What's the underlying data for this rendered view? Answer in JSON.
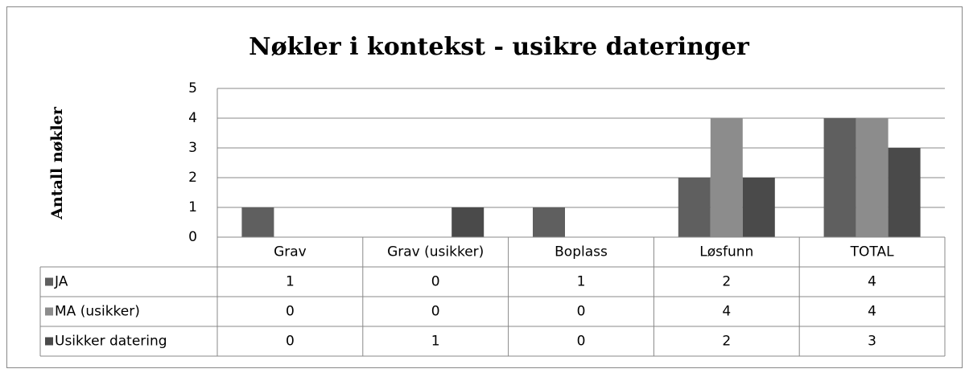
{
  "chart_data": {
    "type": "bar",
    "title": "Nøkler i kontekst - usikre dateringer",
    "y_label": "Antall nøkler",
    "categories": [
      "Grav",
      "Grav (usikker)",
      "Boplass",
      "Løsfunn",
      "TOTAL"
    ],
    "series": [
      {
        "name": "JA",
        "color": "#5f5f5f",
        "values": [
          1,
          0,
          1,
          2,
          4
        ]
      },
      {
        "name": "MA (usikker)",
        "color": "#8c8c8c",
        "values": [
          0,
          0,
          0,
          4,
          4
        ]
      },
      {
        "name": "Usikker datering",
        "color": "#4a4a4a",
        "values": [
          0,
          1,
          0,
          2,
          3
        ]
      }
    ],
    "ylim": [
      0,
      5
    ],
    "yticks": [
      0,
      1,
      2,
      3,
      4,
      5
    ],
    "grid": true,
    "data_table": true
  }
}
